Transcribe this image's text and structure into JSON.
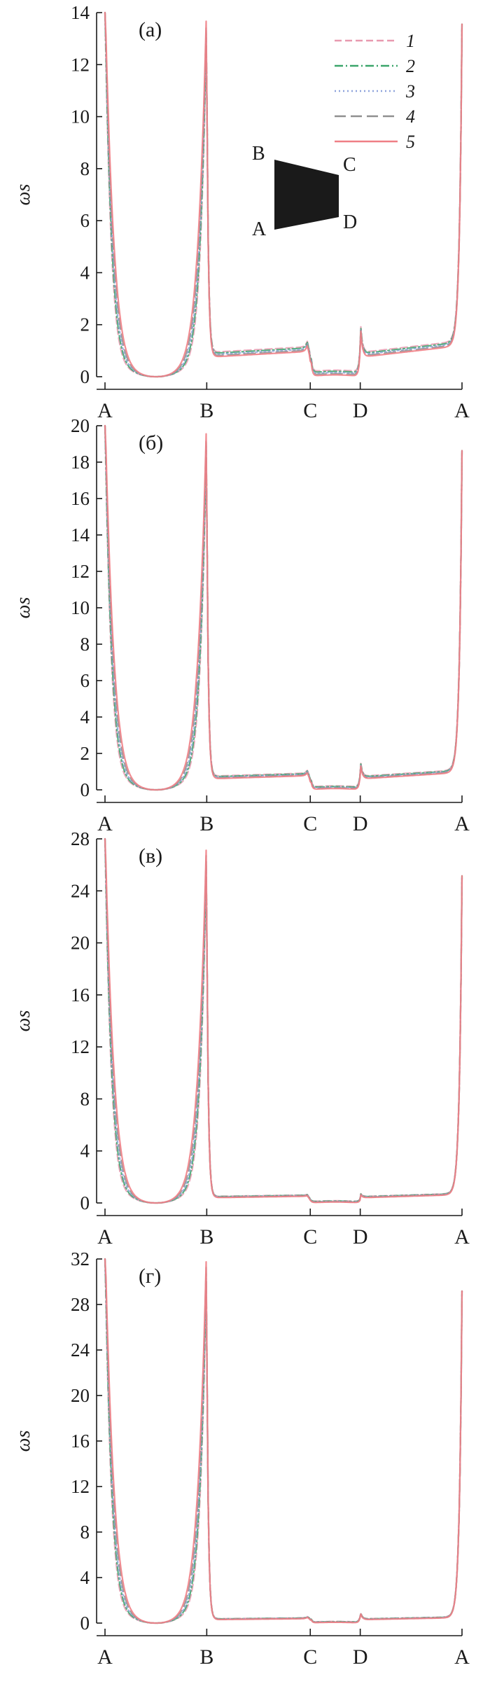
{
  "colors": {
    "axis": "#1a1a1a",
    "inset_fill": "#1a1a1a",
    "series": [
      "#e89ab0",
      "#3aa56a",
      "#8ea3dc",
      "#8f8f8f",
      "#ef7f86"
    ]
  },
  "legend": {
    "placement": "top-right",
    "entries": [
      {
        "label": "1",
        "style": "dash",
        "color": "#e89ab0"
      },
      {
        "label": "2",
        "style": "dash-dot",
        "color": "#3aa56a"
      },
      {
        "label": "3",
        "style": "dot",
        "color": "#8ea3dc"
      },
      {
        "label": "4",
        "style": "long-dash",
        "color": "#8f8f8f"
      },
      {
        "label": "5",
        "style": "solid",
        "color": "#ef7f86"
      }
    ]
  },
  "inset": {
    "description_labels": [
      "B",
      "C",
      "A",
      "D"
    ]
  },
  "chart_data": [
    {
      "type": "line",
      "panel": "(а)",
      "ylabel": "ωs",
      "ylim": [
        0,
        14
      ],
      "yticks": [
        0,
        2,
        4,
        6,
        8,
        10,
        12,
        14
      ],
      "xtick_labels": [
        "A",
        "B",
        "C",
        "D",
        "A"
      ],
      "peak": 13.0,
      "edge_bump": 1.4,
      "plateau": 0.75,
      "series": [
        {
          "name": "1"
        },
        {
          "name": "2"
        },
        {
          "name": "3"
        },
        {
          "name": "4"
        },
        {
          "name": "5"
        }
      ]
    },
    {
      "type": "line",
      "panel": "(б)",
      "ylabel": "ωs",
      "ylim": [
        0,
        20
      ],
      "yticks": [
        0,
        2,
        4,
        6,
        8,
        10,
        12,
        14,
        16,
        18,
        20
      ],
      "xtick_labels": [
        "A",
        "B",
        "C",
        "D",
        "A"
      ],
      "peak": 18.6,
      "edge_bump": 1.0,
      "plateau": 0.6,
      "series": [
        {
          "name": "1"
        },
        {
          "name": "2"
        },
        {
          "name": "3"
        },
        {
          "name": "4"
        },
        {
          "name": "5"
        }
      ]
    },
    {
      "type": "line",
      "panel": "(в)",
      "ylabel": "ωs",
      "ylim": [
        0,
        28
      ],
      "yticks": [
        0,
        4,
        8,
        12,
        16,
        20,
        24,
        28
      ],
      "xtick_labels": [
        "A",
        "B",
        "C",
        "D",
        "A"
      ],
      "peak": 25.8,
      "edge_bump": 0.3,
      "plateau": 0.4,
      "series": [
        {
          "name": "1"
        },
        {
          "name": "2"
        },
        {
          "name": "3"
        },
        {
          "name": "4"
        },
        {
          "name": "5"
        }
      ]
    },
    {
      "type": "line",
      "panel": "(г)",
      "ylabel": "ωs",
      "ylim": [
        0,
        32
      ],
      "yticks": [
        0,
        4,
        8,
        12,
        16,
        20,
        24,
        28,
        32
      ],
      "xtick_labels": [
        "A",
        "B",
        "C",
        "D",
        "A"
      ],
      "peak": 30.2,
      "edge_bump": 0.7,
      "plateau": 0.3,
      "series": [
        {
          "name": "1"
        },
        {
          "name": "2"
        },
        {
          "name": "3"
        },
        {
          "name": "4"
        },
        {
          "name": "5"
        }
      ]
    }
  ]
}
